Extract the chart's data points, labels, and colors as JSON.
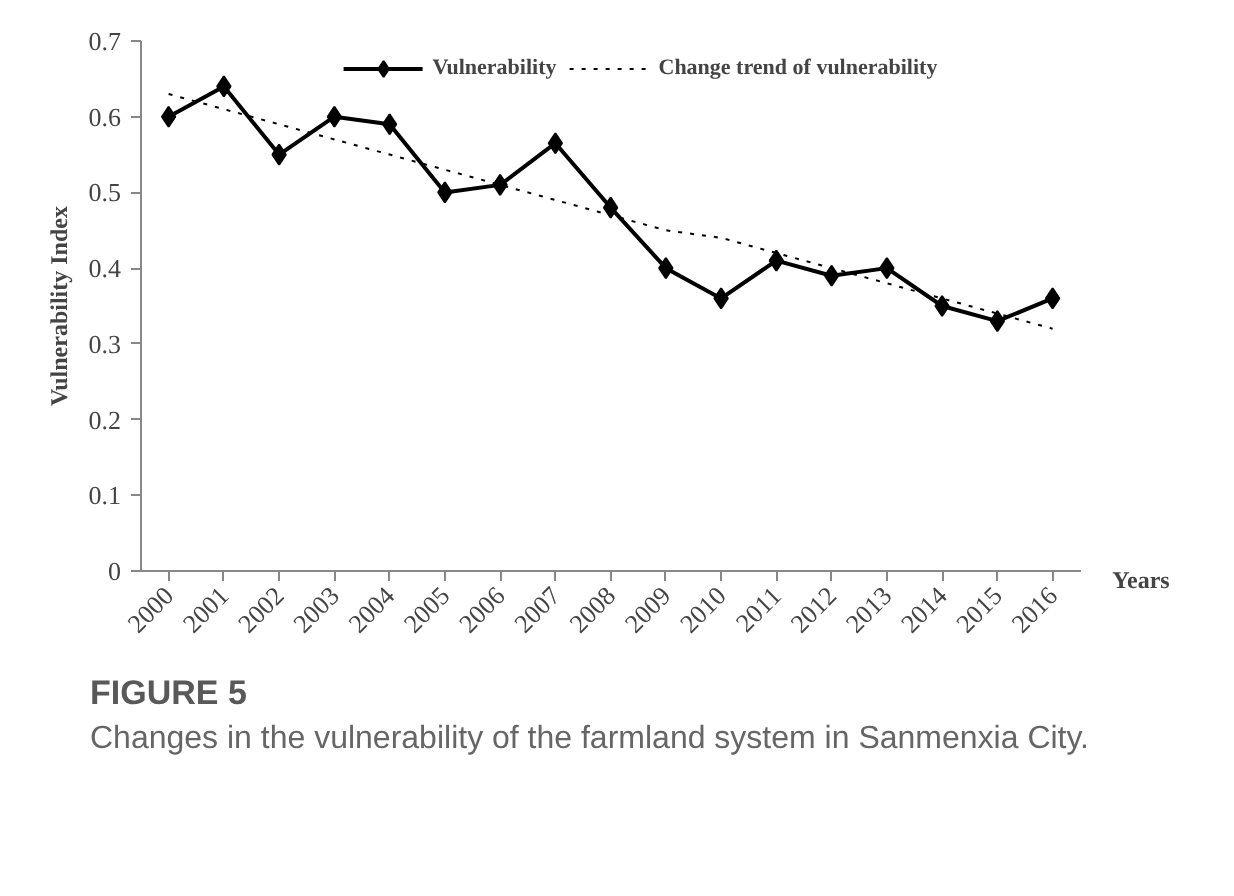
{
  "chart_data": {
    "type": "line",
    "title": "FIGURE 5",
    "annotations": [
      "Changes in the vulnerability of the farmland system in Sanmenxia City."
    ],
    "xlabel": "Years",
    "ylabel": "Vulnerability Index",
    "categories": [
      "2000",
      "2001",
      "2002",
      "2003",
      "2004",
      "2005",
      "2006",
      "2007",
      "2008",
      "2009",
      "2010",
      "2011",
      "2012",
      "2013",
      "2014",
      "2015",
      "2016"
    ],
    "series": [
      {
        "name": "Vulnerability",
        "color": "#000000",
        "marker": "diamond",
        "line_style": "solid",
        "values": [
          0.6,
          0.64,
          0.55,
          0.6,
          0.59,
          0.5,
          0.51,
          0.565,
          0.48,
          0.4,
          0.36,
          0.41,
          0.39,
          0.4,
          0.35,
          0.33,
          0.36
        ]
      },
      {
        "name": "Change trend of vulnerability",
        "color": "#000000",
        "marker": "none",
        "line_style": "dotted",
        "values": [
          0.63,
          0.61,
          0.59,
          0.57,
          0.55,
          0.53,
          0.51,
          0.49,
          0.47,
          0.45,
          0.44,
          0.42,
          0.4,
          0.38,
          0.36,
          0.34,
          0.32
        ]
      }
    ],
    "ylim": [
      0,
      0.7
    ],
    "yticks": [
      0,
      0.1,
      0.2,
      0.3,
      0.4,
      0.5,
      0.6,
      0.7
    ],
    "grid": false,
    "legend": "top"
  }
}
